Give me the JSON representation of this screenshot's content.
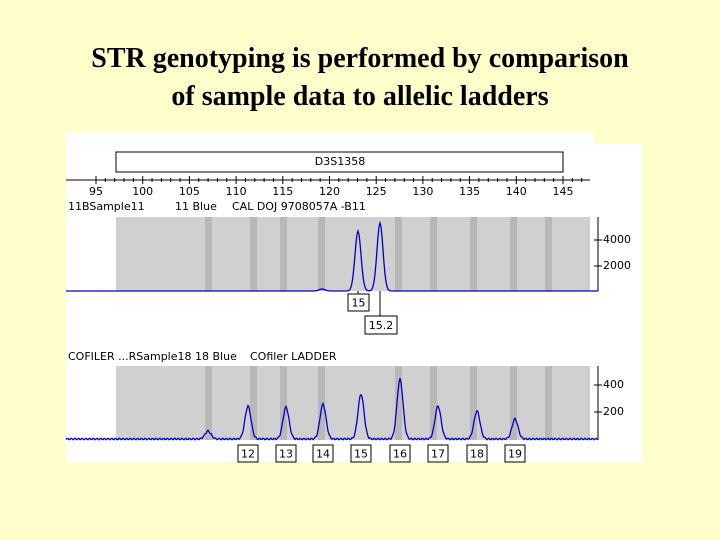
{
  "title": {
    "lines": [
      "STR genotyping is performed by comparison",
      "of sample data to allelic ladders"
    ]
  },
  "figure": {
    "marker": "D3S1358",
    "size_ticks": [
      "95",
      "100",
      "105",
      "110",
      "115",
      "120",
      "125",
      "130",
      "135",
      "140",
      "145"
    ],
    "panels": [
      {
        "header": [
          "11BSample11",
          "11 Blue",
          "CAL DOJ 9708057A -B11"
        ],
        "right_ticks": [
          "4000",
          "2000"
        ],
        "allele_labels": [
          "15",
          "15.2"
        ]
      },
      {
        "header": [
          "COFILER ...RSample18 18 Blue",
          "COfiler LADDER"
        ],
        "right_ticks": [
          "400",
          "200"
        ],
        "allele_labels": [
          "12",
          "13",
          "14",
          "15",
          "16",
          "17",
          "18",
          "19"
        ]
      }
    ]
  }
}
